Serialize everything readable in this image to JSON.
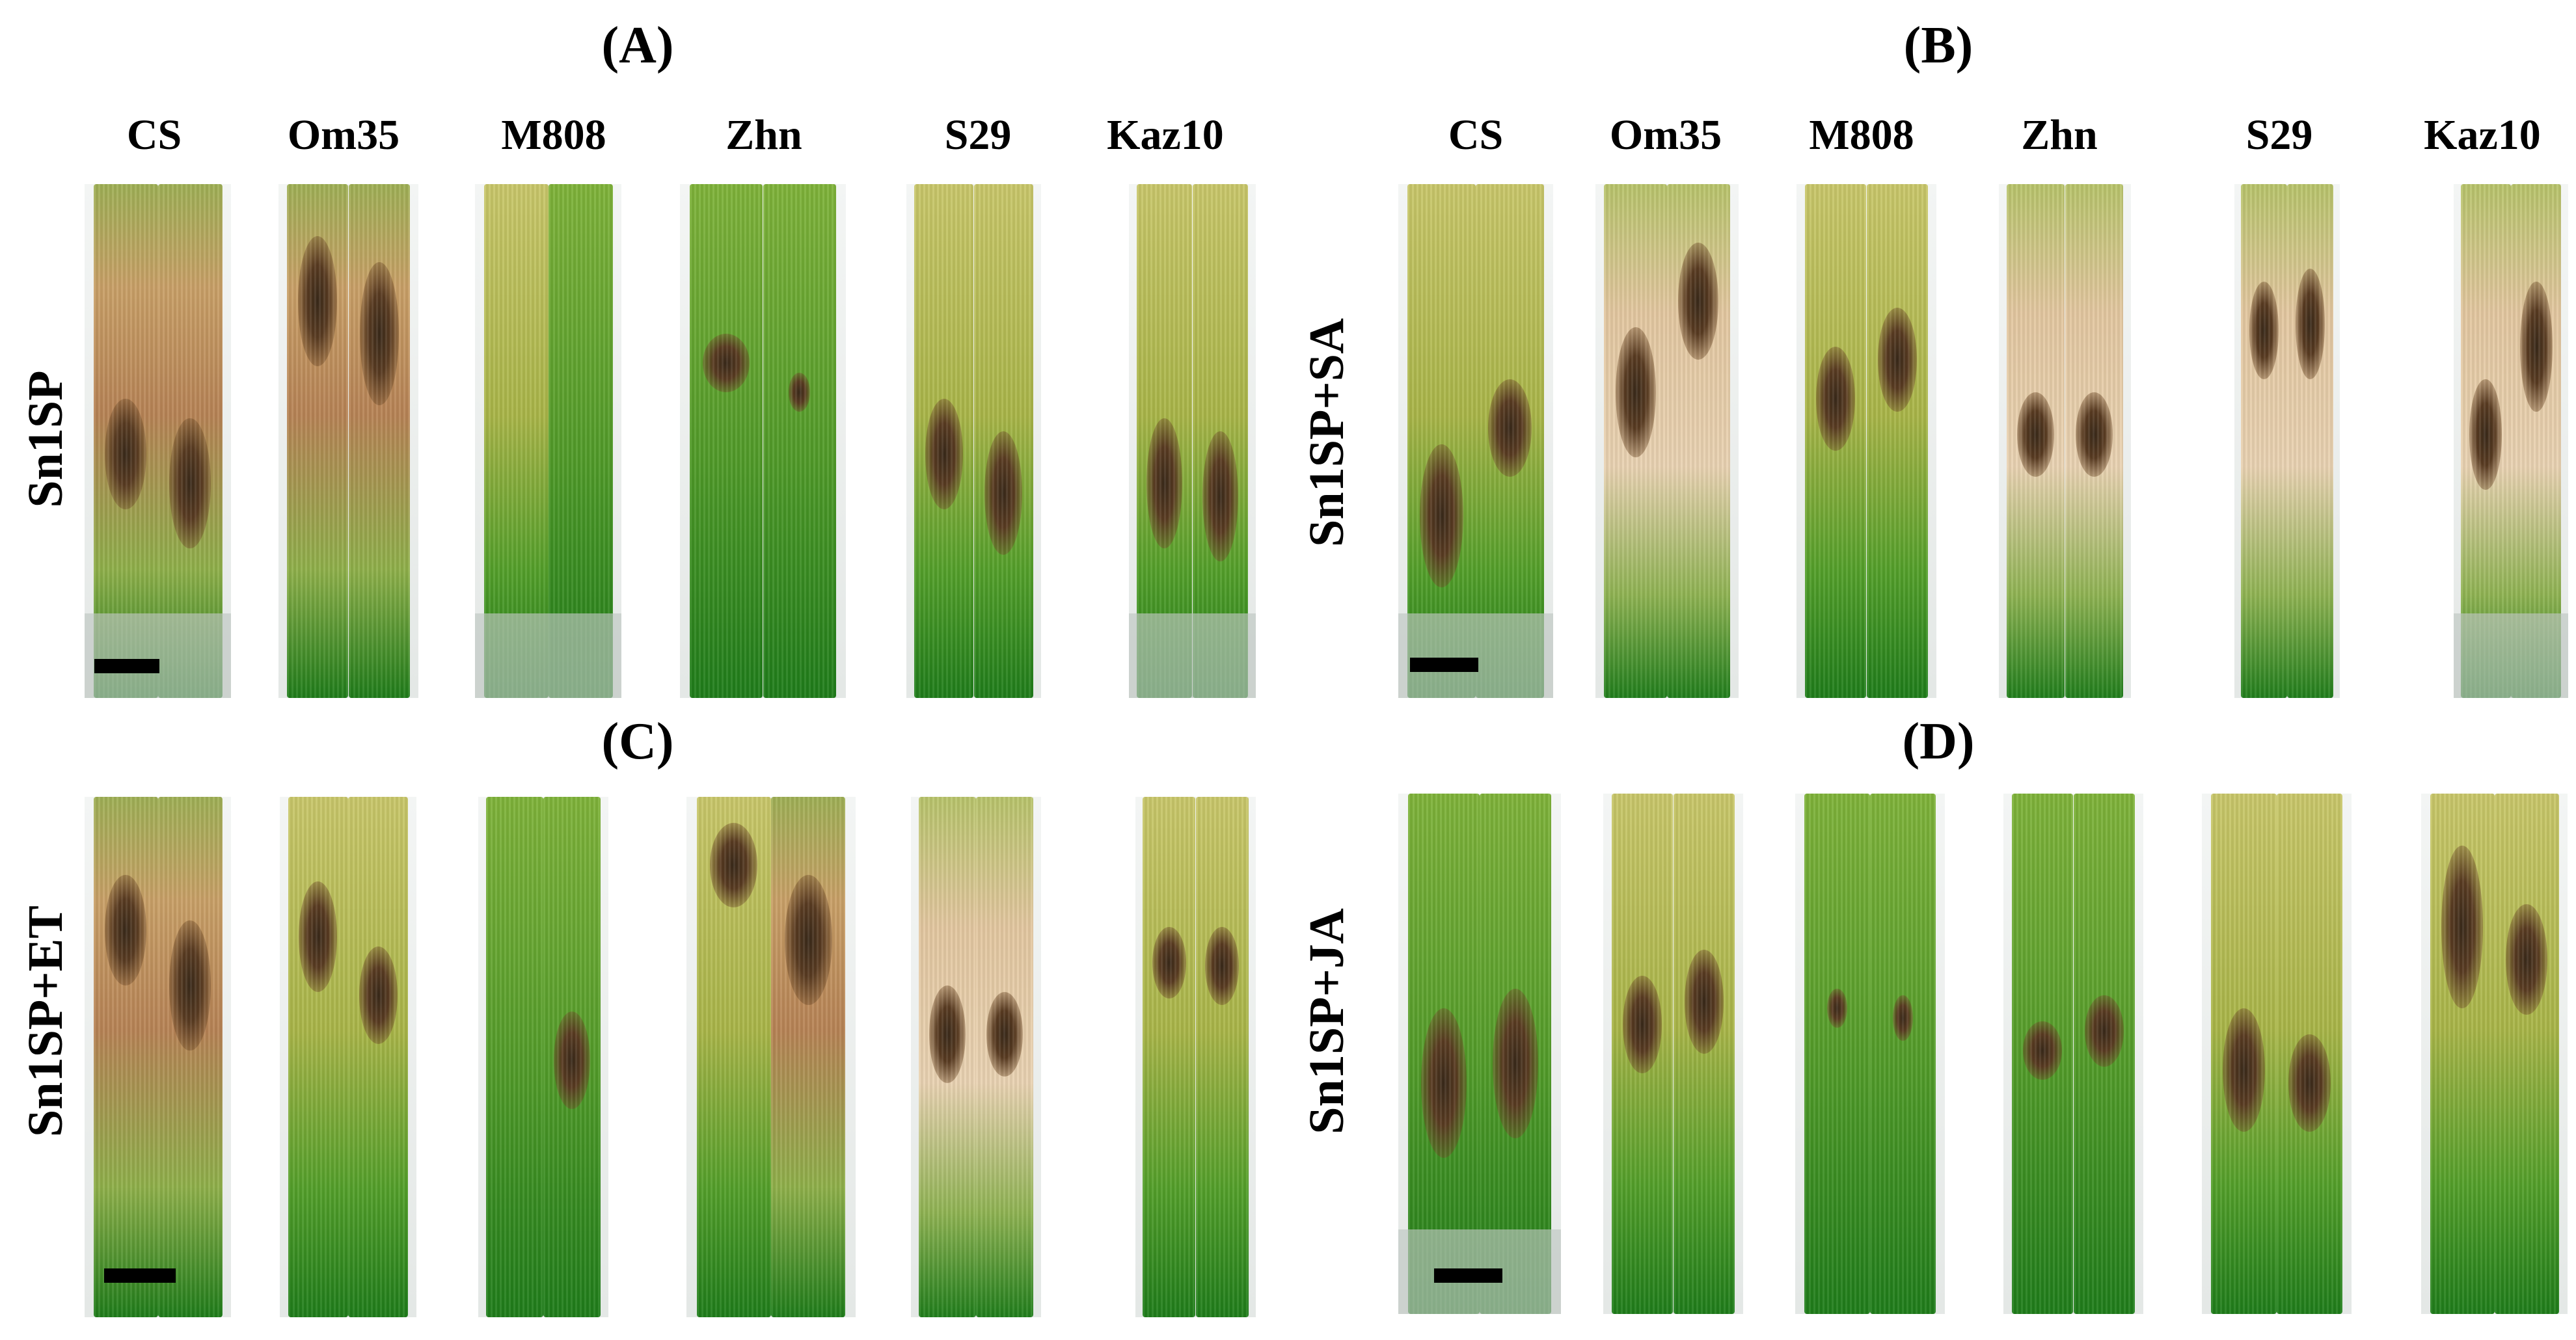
{
  "panels": [
    {
      "letter": "(A)",
      "row_label": "Sn1SP",
      "columns": [
        "CS",
        "Om35",
        "M808",
        "Zhn",
        "S29",
        "Kaz10"
      ]
    },
    {
      "letter": "(B)",
      "row_label": "Sn1SP+SA",
      "columns": [
        "CS",
        "Om35",
        "M808",
        "Zhn",
        "S29",
        "Kaz10"
      ]
    },
    {
      "letter": "(C)",
      "row_label": "Sn1SP+ET",
      "columns": []
    },
    {
      "letter": "(D)",
      "row_label": "Sn1SP+JA",
      "columns": []
    }
  ]
}
